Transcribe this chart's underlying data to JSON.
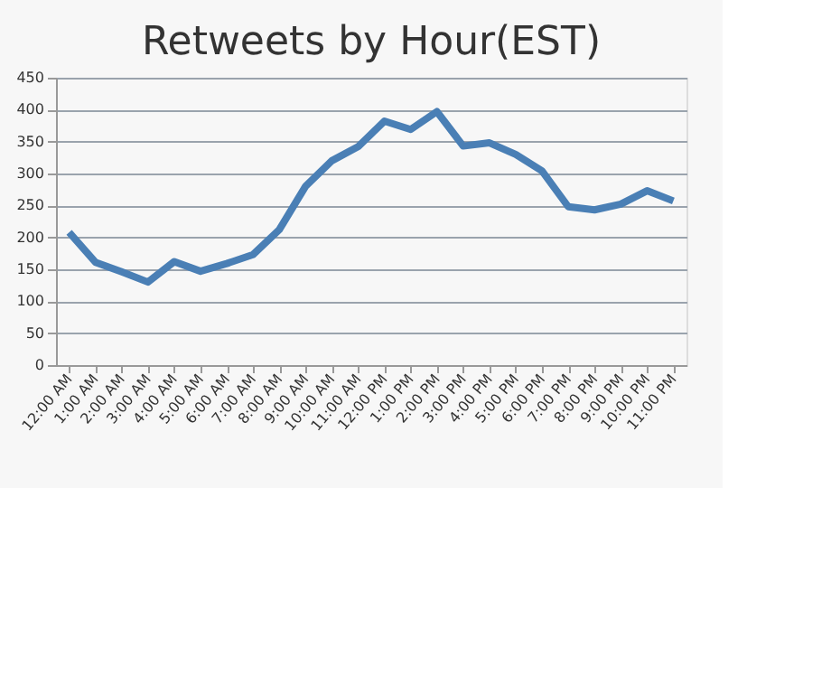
{
  "chart_data": {
    "type": "line",
    "title": "Retweets by Hour(EST)",
    "categories": [
      "12:00 AM",
      "1:00 AM",
      "2:00 AM",
      "3:00 AM",
      "4:00 AM",
      "5:00 AM",
      "6:00 AM",
      "7:00 AM",
      "8:00 AM",
      "9:00 AM",
      "10:00 AM",
      "11:00 AM",
      "12:00 PM",
      "1:00 PM",
      "2:00 PM",
      "3:00 PM",
      "4:00 PM",
      "5:00 PM",
      "6:00 PM",
      "7:00 PM",
      "8:00 PM",
      "9:00 PM",
      "10:00 PM",
      "11:00 PM"
    ],
    "series": [
      {
        "color": "#4a7fb5",
        "values": [
          208,
          161,
          146,
          130,
          162,
          147,
          159,
          173,
          212,
          280,
          320,
          342,
          382,
          369,
          397,
          343,
          348,
          330,
          304,
          248,
          243,
          252,
          273,
          257
        ]
      }
    ],
    "ylim": [
      0,
      450
    ],
    "yticks": [
      0,
      50,
      100,
      150,
      200,
      250,
      300,
      350,
      400,
      450
    ],
    "grid": "y",
    "marker": "none",
    "line_style": "solid",
    "legend": false
  }
}
